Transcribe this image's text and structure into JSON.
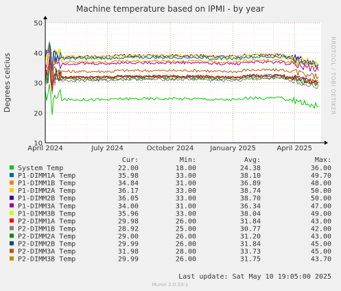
{
  "chart_data": {
    "type": "line",
    "title": "Machine temperature based on IPMI - by year",
    "ylabel": "Degrees celcius",
    "ylim": [
      10,
      50
    ],
    "yticks": [
      10,
      20,
      30,
      40,
      50
    ],
    "xlim": [
      "2024-04-01",
      "2025-05-10"
    ],
    "xticks": [
      {
        "label": "April 2024",
        "date": "2024-04-01"
      },
      {
        "label": "July 2024",
        "date": "2024-07-01"
      },
      {
        "label": "October 2024",
        "date": "2024-10-01"
      },
      {
        "label": "January 2025",
        "date": "2025-01-01"
      },
      {
        "label": "April 2025",
        "date": "2025-04-01"
      }
    ],
    "grid": true,
    "side_label": "RRDTOOL / TOBI OETIKER",
    "columns": [
      "Cur:",
      "Min:",
      "Avg:",
      "Max:"
    ],
    "series": [
      {
        "name": "System Temp",
        "color": "#00cc00",
        "cur": "22.00",
        "min": "18.00",
        "avg": "24.38",
        "max": "36.00"
      },
      {
        "name": "P1-DIMM1A Temp",
        "color": "#0066b3",
        "cur": "35.98",
        "min": "33.00",
        "avg": "38.10",
        "max": "49.70"
      },
      {
        "name": "P1-DIMM1B Temp",
        "color": "#ff8000",
        "cur": "34.84",
        "min": "31.00",
        "avg": "36.89",
        "max": "48.00"
      },
      {
        "name": "P1-DIMM2A Temp",
        "color": "#ffcc00",
        "cur": "36.17",
        "min": "33.00",
        "avg": "38.74",
        "max": "50.00"
      },
      {
        "name": "P1-DIMM2B Temp",
        "color": "#330099",
        "cur": "36.05",
        "min": "33.00",
        "avg": "38.70",
        "max": "50.00"
      },
      {
        "name": "P1-DIMM3A Temp",
        "color": "#990099",
        "cur": "34.00",
        "min": "31.00",
        "avg": "36.34",
        "max": "47.00"
      },
      {
        "name": "P1-DIMM3B Temp",
        "color": "#ccff00",
        "cur": "35.96",
        "min": "33.00",
        "avg": "38.04",
        "max": "49.00"
      },
      {
        "name": "P2-DIMM1A Temp",
        "color": "#ff0000",
        "cur": "29.98",
        "min": "26.00",
        "avg": "31.84",
        "max": "43.00"
      },
      {
        "name": "P2-DIMM1B Temp",
        "color": "#808080",
        "cur": "28.92",
        "min": "25.00",
        "avg": "30.77",
        "max": "42.00"
      },
      {
        "name": "P2-DIMM2A Temp",
        "color": "#008f00",
        "cur": "29.00",
        "min": "26.00",
        "avg": "31.20",
        "max": "43.00"
      },
      {
        "name": "P2-DIMM2B Temp",
        "color": "#00487d",
        "cur": "29.99",
        "min": "26.00",
        "avg": "31.84",
        "max": "45.00"
      },
      {
        "name": "P2-DIMM3A Temp",
        "color": "#b35a00",
        "cur": "31.98",
        "min": "28.00",
        "avg": "33.73",
        "max": "45.00"
      },
      {
        "name": "P2-DIMM3B Temp",
        "color": "#b38f00",
        "cur": "29.99",
        "min": "26.00",
        "avg": "31.75",
        "max": "43.70"
      }
    ],
    "last_update": "Last update:  Sat May 10 19:05:00 2025",
    "footer": "Munin 2.0.33-1"
  }
}
